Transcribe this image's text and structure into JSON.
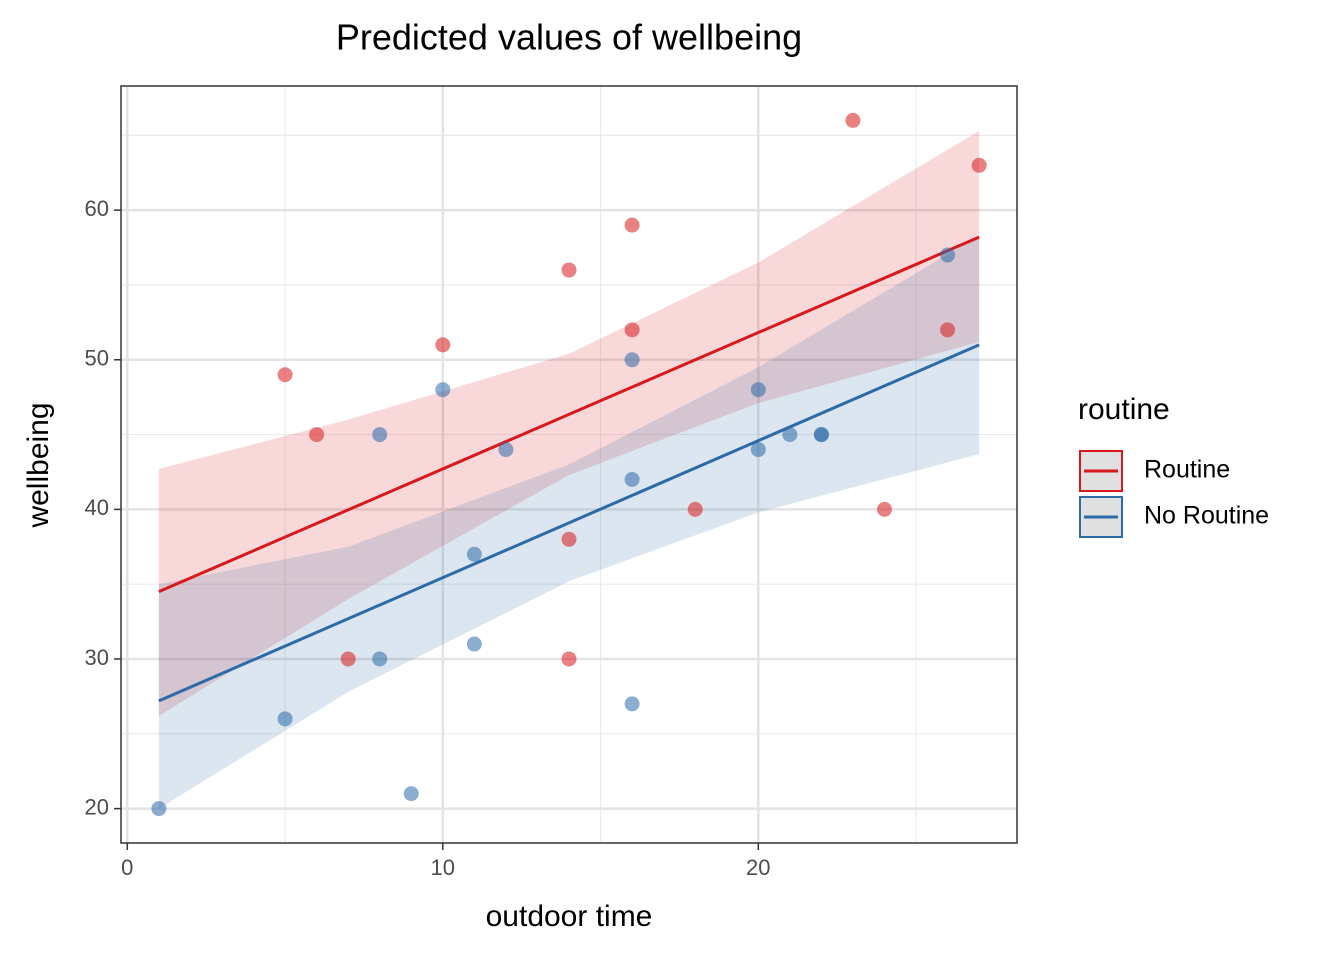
{
  "chart_data": {
    "type": "scatter",
    "title": "Predicted values of wellbeing",
    "xlabel": "outdoor time",
    "ylabel": "wellbeing",
    "legend_title": "routine",
    "xlim": [
      -0.2,
      28.2
    ],
    "ylim": [
      17.7,
      68.3
    ],
    "xticks": [
      0,
      10,
      20
    ],
    "yticks": [
      20,
      30,
      40,
      50,
      60
    ],
    "minor_xticks": [
      5,
      15,
      25
    ],
    "minor_yticks": [
      25,
      35,
      45,
      55,
      65
    ],
    "grid": true,
    "series": [
      {
        "name": "Routine",
        "color": "#d7191c",
        "x": [
          5,
          6,
          7,
          10,
          14,
          14,
          14,
          16,
          16,
          18,
          23,
          24,
          26,
          27
        ],
        "y": [
          49,
          45,
          30,
          51,
          56,
          38,
          30,
          59,
          52,
          40,
          66,
          40,
          52,
          63
        ],
        "fit": {
          "x": [
            1,
            27
          ],
          "y": [
            34.5,
            58.2
          ]
        },
        "band": {
          "x": [
            1,
            7,
            14,
            20,
            27
          ],
          "lower": [
            26.2,
            34.0,
            42.3,
            47.1,
            51.2
          ],
          "upper": [
            42.7,
            46.0,
            50.4,
            56.5,
            65.3
          ]
        }
      },
      {
        "name": "No Routine",
        "color": "#2c6aa8",
        "x": [
          1,
          5,
          8,
          8,
          9,
          10,
          11,
          11,
          12,
          16,
          16,
          16,
          20,
          20,
          21,
          22,
          22,
          26
        ],
        "y": [
          20,
          26,
          45,
          30,
          21,
          48,
          37,
          31,
          44,
          50,
          42,
          27,
          48,
          44,
          45,
          45,
          45,
          57
        ],
        "fit": {
          "x": [
            1,
            27
          ],
          "y": [
            27.2,
            51.0
          ]
        },
        "band": {
          "x": [
            1,
            7,
            14,
            20,
            27
          ],
          "lower": [
            20.0,
            27.8,
            35.2,
            39.8,
            43.7
          ],
          "upper": [
            35.0,
            37.5,
            43.0,
            49.5,
            58.3
          ]
        }
      }
    ]
  }
}
